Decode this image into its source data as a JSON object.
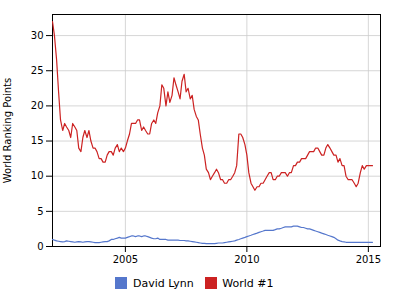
{
  "chart_data": {
    "type": "line",
    "ylabel": "World Ranking Points",
    "xlim": [
      2002.0,
      2015.5
    ],
    "ylim": [
      0,
      33
    ],
    "xticks": [
      2005,
      2010,
      2015
    ],
    "yticks": [
      0,
      5,
      10,
      15,
      20,
      25,
      30
    ],
    "grid": true,
    "legend": "bottom",
    "x": [
      2002.0,
      2002.08,
      2002.17,
      2002.25,
      2002.33,
      2002.42,
      2002.5,
      2002.58,
      2002.67,
      2002.75,
      2002.83,
      2002.92,
      2003.0,
      2003.08,
      2003.17,
      2003.25,
      2003.33,
      2003.42,
      2003.5,
      2003.58,
      2003.67,
      2003.75,
      2003.83,
      2003.92,
      2004.0,
      2004.08,
      2004.17,
      2004.25,
      2004.33,
      2004.42,
      2004.5,
      2004.58,
      2004.67,
      2004.75,
      2004.83,
      2004.92,
      2005.0,
      2005.08,
      2005.17,
      2005.25,
      2005.33,
      2005.42,
      2005.5,
      2005.58,
      2005.67,
      2005.75,
      2005.83,
      2005.92,
      2006.0,
      2006.08,
      2006.17,
      2006.25,
      2006.33,
      2006.42,
      2006.5,
      2006.58,
      2006.67,
      2006.75,
      2006.83,
      2006.92,
      2007.0,
      2007.08,
      2007.17,
      2007.25,
      2007.33,
      2007.42,
      2007.5,
      2007.58,
      2007.67,
      2007.75,
      2007.83,
      2007.92,
      2008.0,
      2008.08,
      2008.17,
      2008.25,
      2008.33,
      2008.42,
      2008.5,
      2008.58,
      2008.67,
      2008.75,
      2008.83,
      2008.92,
      2009.0,
      2009.08,
      2009.17,
      2009.25,
      2009.33,
      2009.42,
      2009.5,
      2009.58,
      2009.67,
      2009.75,
      2009.83,
      2009.92,
      2010.0,
      2010.08,
      2010.17,
      2010.25,
      2010.33,
      2010.42,
      2010.5,
      2010.58,
      2010.67,
      2010.75,
      2010.83,
      2010.92,
      2011.0,
      2011.08,
      2011.17,
      2011.25,
      2011.33,
      2011.42,
      2011.5,
      2011.58,
      2011.67,
      2011.75,
      2011.83,
      2011.92,
      2012.0,
      2012.08,
      2012.17,
      2012.25,
      2012.33,
      2012.42,
      2012.5,
      2012.58,
      2012.67,
      2012.75,
      2012.83,
      2012.92,
      2013.0,
      2013.08,
      2013.17,
      2013.25,
      2013.33,
      2013.42,
      2013.5,
      2013.58,
      2013.67,
      2013.75,
      2013.83,
      2013.92,
      2014.0,
      2014.08,
      2014.17,
      2014.25,
      2014.33,
      2014.42,
      2014.5,
      2014.58,
      2014.67,
      2014.75,
      2014.83,
      2014.92,
      2015.0,
      2015.17
    ],
    "series": [
      {
        "name": "David Lynn",
        "color": "#5577cc",
        "values": [
          1.0,
          0.9,
          0.8,
          0.75,
          0.7,
          0.65,
          0.7,
          0.8,
          0.75,
          0.7,
          0.65,
          0.6,
          0.65,
          0.7,
          0.65,
          0.6,
          0.65,
          0.7,
          0.7,
          0.65,
          0.6,
          0.55,
          0.55,
          0.55,
          0.6,
          0.65,
          0.7,
          0.7,
          0.8,
          1.0,
          1.0,
          1.1,
          1.2,
          1.3,
          1.2,
          1.2,
          1.2,
          1.3,
          1.4,
          1.5,
          1.5,
          1.4,
          1.5,
          1.5,
          1.4,
          1.5,
          1.5,
          1.4,
          1.3,
          1.2,
          1.1,
          1.1,
          1.2,
          1.0,
          1.0,
          1.0,
          1.0,
          0.9,
          0.9,
          0.9,
          0.9,
          0.9,
          0.9,
          0.85,
          0.85,
          0.85,
          0.8,
          0.8,
          0.75,
          0.7,
          0.65,
          0.6,
          0.55,
          0.5,
          0.45,
          0.45,
          0.4,
          0.4,
          0.4,
          0.4,
          0.4,
          0.45,
          0.5,
          0.5,
          0.5,
          0.55,
          0.6,
          0.65,
          0.7,
          0.75,
          0.8,
          0.9,
          1.0,
          1.1,
          1.2,
          1.3,
          1.4,
          1.5,
          1.6,
          1.7,
          1.8,
          1.9,
          2.0,
          2.1,
          2.2,
          2.3,
          2.3,
          2.3,
          2.3,
          2.3,
          2.4,
          2.5,
          2.5,
          2.6,
          2.7,
          2.8,
          2.8,
          2.8,
          2.8,
          2.9,
          2.9,
          2.9,
          2.8,
          2.7,
          2.7,
          2.6,
          2.5,
          2.5,
          2.4,
          2.3,
          2.2,
          2.1,
          2.0,
          1.9,
          1.8,
          1.7,
          1.6,
          1.5,
          1.4,
          1.3,
          1.1,
          0.9,
          0.8,
          0.7,
          0.65,
          0.6,
          0.6,
          0.6,
          0.6,
          0.6,
          0.6,
          0.6,
          0.6,
          0.6,
          0.6,
          0.6,
          0.6,
          0.6
        ]
      },
      {
        "name": "World #1",
        "color": "#cc2222",
        "values": [
          32.0,
          30.0,
          26.5,
          22.0,
          18.0,
          16.5,
          17.5,
          17.0,
          16.5,
          15.5,
          17.5,
          17.0,
          16.5,
          14.0,
          13.5,
          15.5,
          16.5,
          15.5,
          16.5,
          15.0,
          14.0,
          14.0,
          13.5,
          12.5,
          12.5,
          12.0,
          12.0,
          13.0,
          13.5,
          13.5,
          13.0,
          14.0,
          14.5,
          13.5,
          14.0,
          13.5,
          14.0,
          15.0,
          16.0,
          17.5,
          17.5,
          17.5,
          18.0,
          18.0,
          16.5,
          17.0,
          16.5,
          16.0,
          16.0,
          17.5,
          18.0,
          17.5,
          19.0,
          20.0,
          23.0,
          22.5,
          20.0,
          22.0,
          20.5,
          21.5,
          24.0,
          23.0,
          22.0,
          21.0,
          23.5,
          24.5,
          22.0,
          22.5,
          21.0,
          21.5,
          19.5,
          18.5,
          18.0,
          16.0,
          14.0,
          13.0,
          11.0,
          10.5,
          9.5,
          10.0,
          10.5,
          11.0,
          10.5,
          9.5,
          9.5,
          9.0,
          9.0,
          9.5,
          9.5,
          10.0,
          10.5,
          11.5,
          16.0,
          16.0,
          15.5,
          14.5,
          13.0,
          10.5,
          9.0,
          8.5,
          8.0,
          8.5,
          8.5,
          9.0,
          9.0,
          9.5,
          10.0,
          10.5,
          10.5,
          9.5,
          9.5,
          10.0,
          10.0,
          10.5,
          10.5,
          10.5,
          10.0,
          10.5,
          10.5,
          11.5,
          11.5,
          12.0,
          12.0,
          12.5,
          12.5,
          12.5,
          13.0,
          13.5,
          13.5,
          13.5,
          14.0,
          14.0,
          13.5,
          13.0,
          13.0,
          14.0,
          14.5,
          14.0,
          13.5,
          13.0,
          13.0,
          12.0,
          12.5,
          11.5,
          11.5,
          10.0,
          9.5,
          9.5,
          9.5,
          9.0,
          8.5,
          9.0,
          10.5,
          11.5,
          11.0,
          11.5,
          11.5,
          11.5
        ]
      }
    ]
  }
}
